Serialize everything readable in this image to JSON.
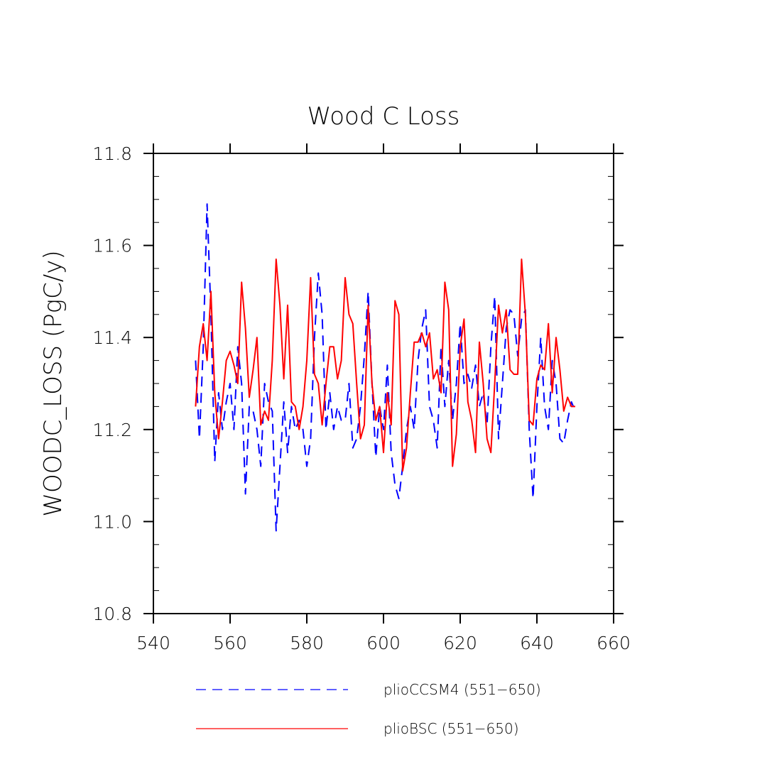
{
  "chart_data": {
    "type": "line",
    "title": "Wood C Loss",
    "xlabel": "",
    "ylabel": "WOODC_LOSS  (PgC/y)",
    "xlim": [
      540,
      660
    ],
    "ylim": [
      10.8,
      11.8
    ],
    "xticks": [
      "540",
      "560",
      "580",
      "600",
      "620",
      "640",
      "660"
    ],
    "yticks": [
      "10.8",
      "11.0",
      "11.2",
      "11.4",
      "11.6",
      "11.8"
    ],
    "grid": false,
    "legend_position": "bottom",
    "series": [
      {
        "name": "plioCCSM4 (551−650)",
        "color": "#0000ff",
        "dash": "dashed",
        "x": [
          551,
          552,
          553,
          554,
          555,
          556,
          557,
          558,
          559,
          560,
          561,
          562,
          563,
          564,
          565,
          566,
          567,
          568,
          569,
          570,
          571,
          572,
          573,
          574,
          575,
          576,
          577,
          578,
          579,
          580,
          581,
          582,
          583,
          584,
          585,
          586,
          587,
          588,
          589,
          590,
          591,
          592,
          593,
          594,
          595,
          596,
          597,
          598,
          599,
          600,
          601,
          602,
          603,
          604,
          605,
          606,
          607,
          608,
          609,
          610,
          611,
          612,
          613,
          614,
          615,
          616,
          617,
          618,
          619,
          620,
          621,
          622,
          623,
          624,
          625,
          626,
          627,
          628,
          629,
          630,
          631,
          632,
          633,
          634,
          635,
          636,
          637,
          638,
          639,
          640,
          641,
          642,
          643,
          644,
          645,
          646,
          647,
          648,
          649,
          650
        ],
        "values": [
          11.35,
          11.18,
          11.38,
          11.69,
          11.45,
          11.13,
          11.28,
          11.2,
          11.26,
          11.3,
          11.2,
          11.38,
          11.3,
          11.06,
          11.25,
          11.24,
          11.2,
          11.12,
          11.3,
          11.26,
          11.24,
          10.98,
          11.12,
          11.26,
          11.15,
          11.25,
          11.2,
          11.22,
          11.2,
          11.12,
          11.18,
          11.4,
          11.54,
          11.45,
          11.2,
          11.28,
          11.2,
          11.25,
          11.22,
          11.22,
          11.3,
          11.16,
          11.18,
          11.25,
          11.36,
          11.5,
          11.3,
          11.14,
          11.25,
          11.2,
          11.34,
          11.15,
          11.08,
          11.05,
          11.12,
          11.2,
          11.25,
          11.2,
          11.35,
          11.42,
          11.46,
          11.25,
          11.22,
          11.16,
          11.38,
          11.25,
          11.35,
          11.22,
          11.3,
          11.43,
          11.3,
          11.32,
          11.29,
          11.34,
          11.25,
          11.28,
          11.21,
          11.38,
          11.49,
          11.18,
          11.3,
          11.42,
          11.46,
          11.45,
          11.36,
          11.44,
          11.46,
          11.2,
          11.05,
          11.25,
          11.4,
          11.25,
          11.2,
          11.35,
          11.3,
          11.18,
          11.17,
          11.22,
          11.26,
          11.24
        ]
      },
      {
        "name": "plioBSC (551−650)",
        "color": "#ff0000",
        "dash": "solid",
        "x": [
          551,
          552,
          553,
          554,
          555,
          556,
          557,
          558,
          559,
          560,
          561,
          562,
          563,
          564,
          565,
          566,
          567,
          568,
          569,
          570,
          571,
          572,
          573,
          574,
          575,
          576,
          577,
          578,
          579,
          580,
          581,
          582,
          583,
          584,
          585,
          586,
          587,
          588,
          589,
          590,
          591,
          592,
          593,
          594,
          595,
          596,
          597,
          598,
          599,
          600,
          601,
          602,
          603,
          604,
          605,
          606,
          607,
          608,
          609,
          610,
          611,
          612,
          613,
          614,
          615,
          616,
          617,
          618,
          619,
          620,
          621,
          622,
          623,
          624,
          625,
          626,
          627,
          628,
          629,
          630,
          631,
          632,
          633,
          634,
          635,
          636,
          637,
          638,
          639,
          640,
          641,
          642,
          643,
          644,
          645,
          646,
          647,
          648,
          649,
          650
        ],
        "values": [
          11.25,
          11.38,
          11.43,
          11.35,
          11.5,
          11.28,
          11.18,
          11.26,
          11.35,
          11.37,
          11.34,
          11.3,
          11.52,
          11.42,
          11.27,
          11.33,
          11.4,
          11.21,
          11.24,
          11.22,
          11.35,
          11.57,
          11.47,
          11.31,
          11.47,
          11.26,
          11.25,
          11.2,
          11.25,
          11.35,
          11.53,
          11.32,
          11.3,
          11.21,
          11.3,
          11.38,
          11.38,
          11.31,
          11.35,
          11.53,
          11.45,
          11.43,
          11.3,
          11.18,
          11.21,
          11.47,
          11.3,
          11.22,
          11.25,
          11.15,
          11.28,
          11.21,
          11.48,
          11.45,
          11.11,
          11.16,
          11.28,
          11.39,
          11.39,
          11.41,
          11.38,
          11.41,
          11.31,
          11.33,
          11.28,
          11.52,
          11.46,
          11.12,
          11.19,
          11.38,
          11.44,
          11.26,
          11.22,
          11.15,
          11.39,
          11.3,
          11.18,
          11.15,
          11.3,
          11.47,
          11.41,
          11.46,
          11.33,
          11.32,
          11.32,
          11.57,
          11.45,
          11.22,
          11.21,
          11.31,
          11.34,
          11.33,
          11.43,
          11.28,
          11.4,
          11.33,
          11.24,
          11.27,
          11.25,
          11.25
        ]
      }
    ]
  }
}
